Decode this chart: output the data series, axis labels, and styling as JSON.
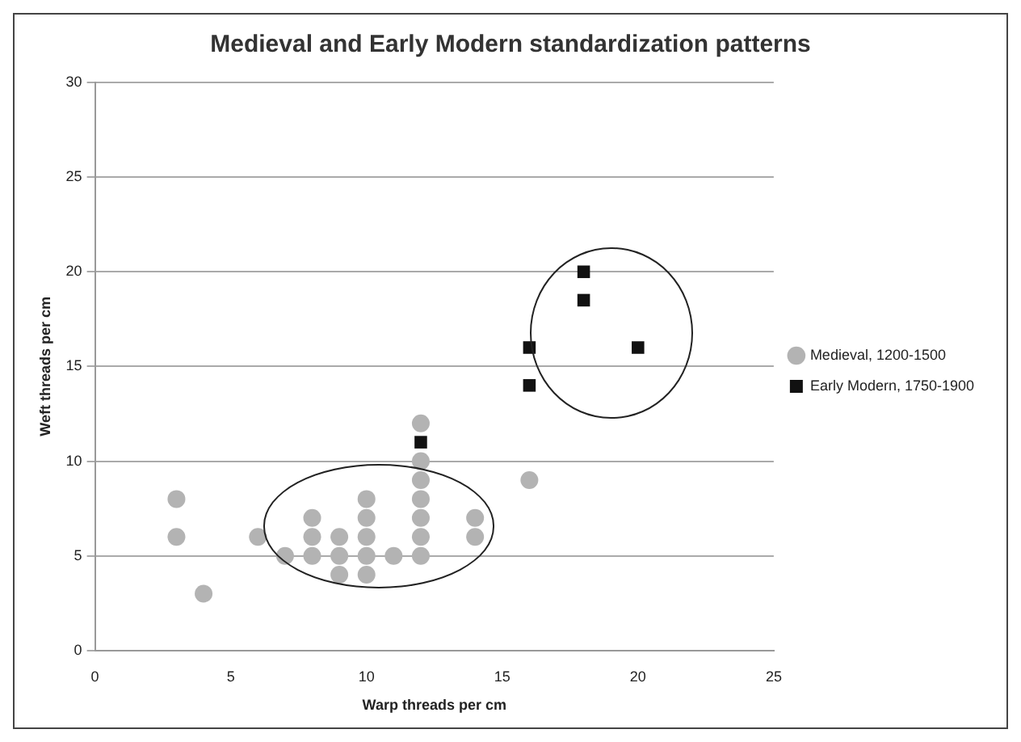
{
  "chart_data": {
    "type": "scatter",
    "title": "Medieval and Early Modern standardization patterns",
    "xlabel": "Warp threads per cm",
    "ylabel": "Weft threads per cm",
    "series": [
      {
        "name": "Medieval, 1200-1500",
        "color": "#b3b3b3",
        "marker": "circle",
        "x": [
          3,
          3,
          4,
          6,
          7,
          8,
          8,
          8,
          9,
          9,
          9,
          10,
          10,
          10,
          10,
          10,
          11,
          12,
          12,
          12,
          12,
          12,
          12,
          12,
          14,
          14,
          16
        ],
        "values": [
          8,
          6,
          3,
          6,
          5,
          7,
          6,
          5,
          6,
          5,
          4,
          8,
          7,
          6,
          5,
          4,
          5,
          12,
          10,
          9,
          8,
          7,
          6,
          5,
          7,
          6,
          9
        ]
      },
      {
        "name": "Early Modern, 1750-1900",
        "color": "#111111",
        "marker": "square",
        "x": [
          12,
          16,
          16,
          18,
          18,
          20
        ],
        "values": [
          11,
          16,
          14,
          20,
          18.5,
          16
        ]
      }
    ],
    "xlim": [
      0,
      25
    ],
    "xticks": [
      0,
      5,
      10,
      15,
      20,
      25
    ],
    "ylim": [
      0,
      30
    ],
    "yticks": [
      0,
      5,
      10,
      15,
      20,
      25,
      30
    ],
    "grid": "y",
    "legend": "right"
  }
}
